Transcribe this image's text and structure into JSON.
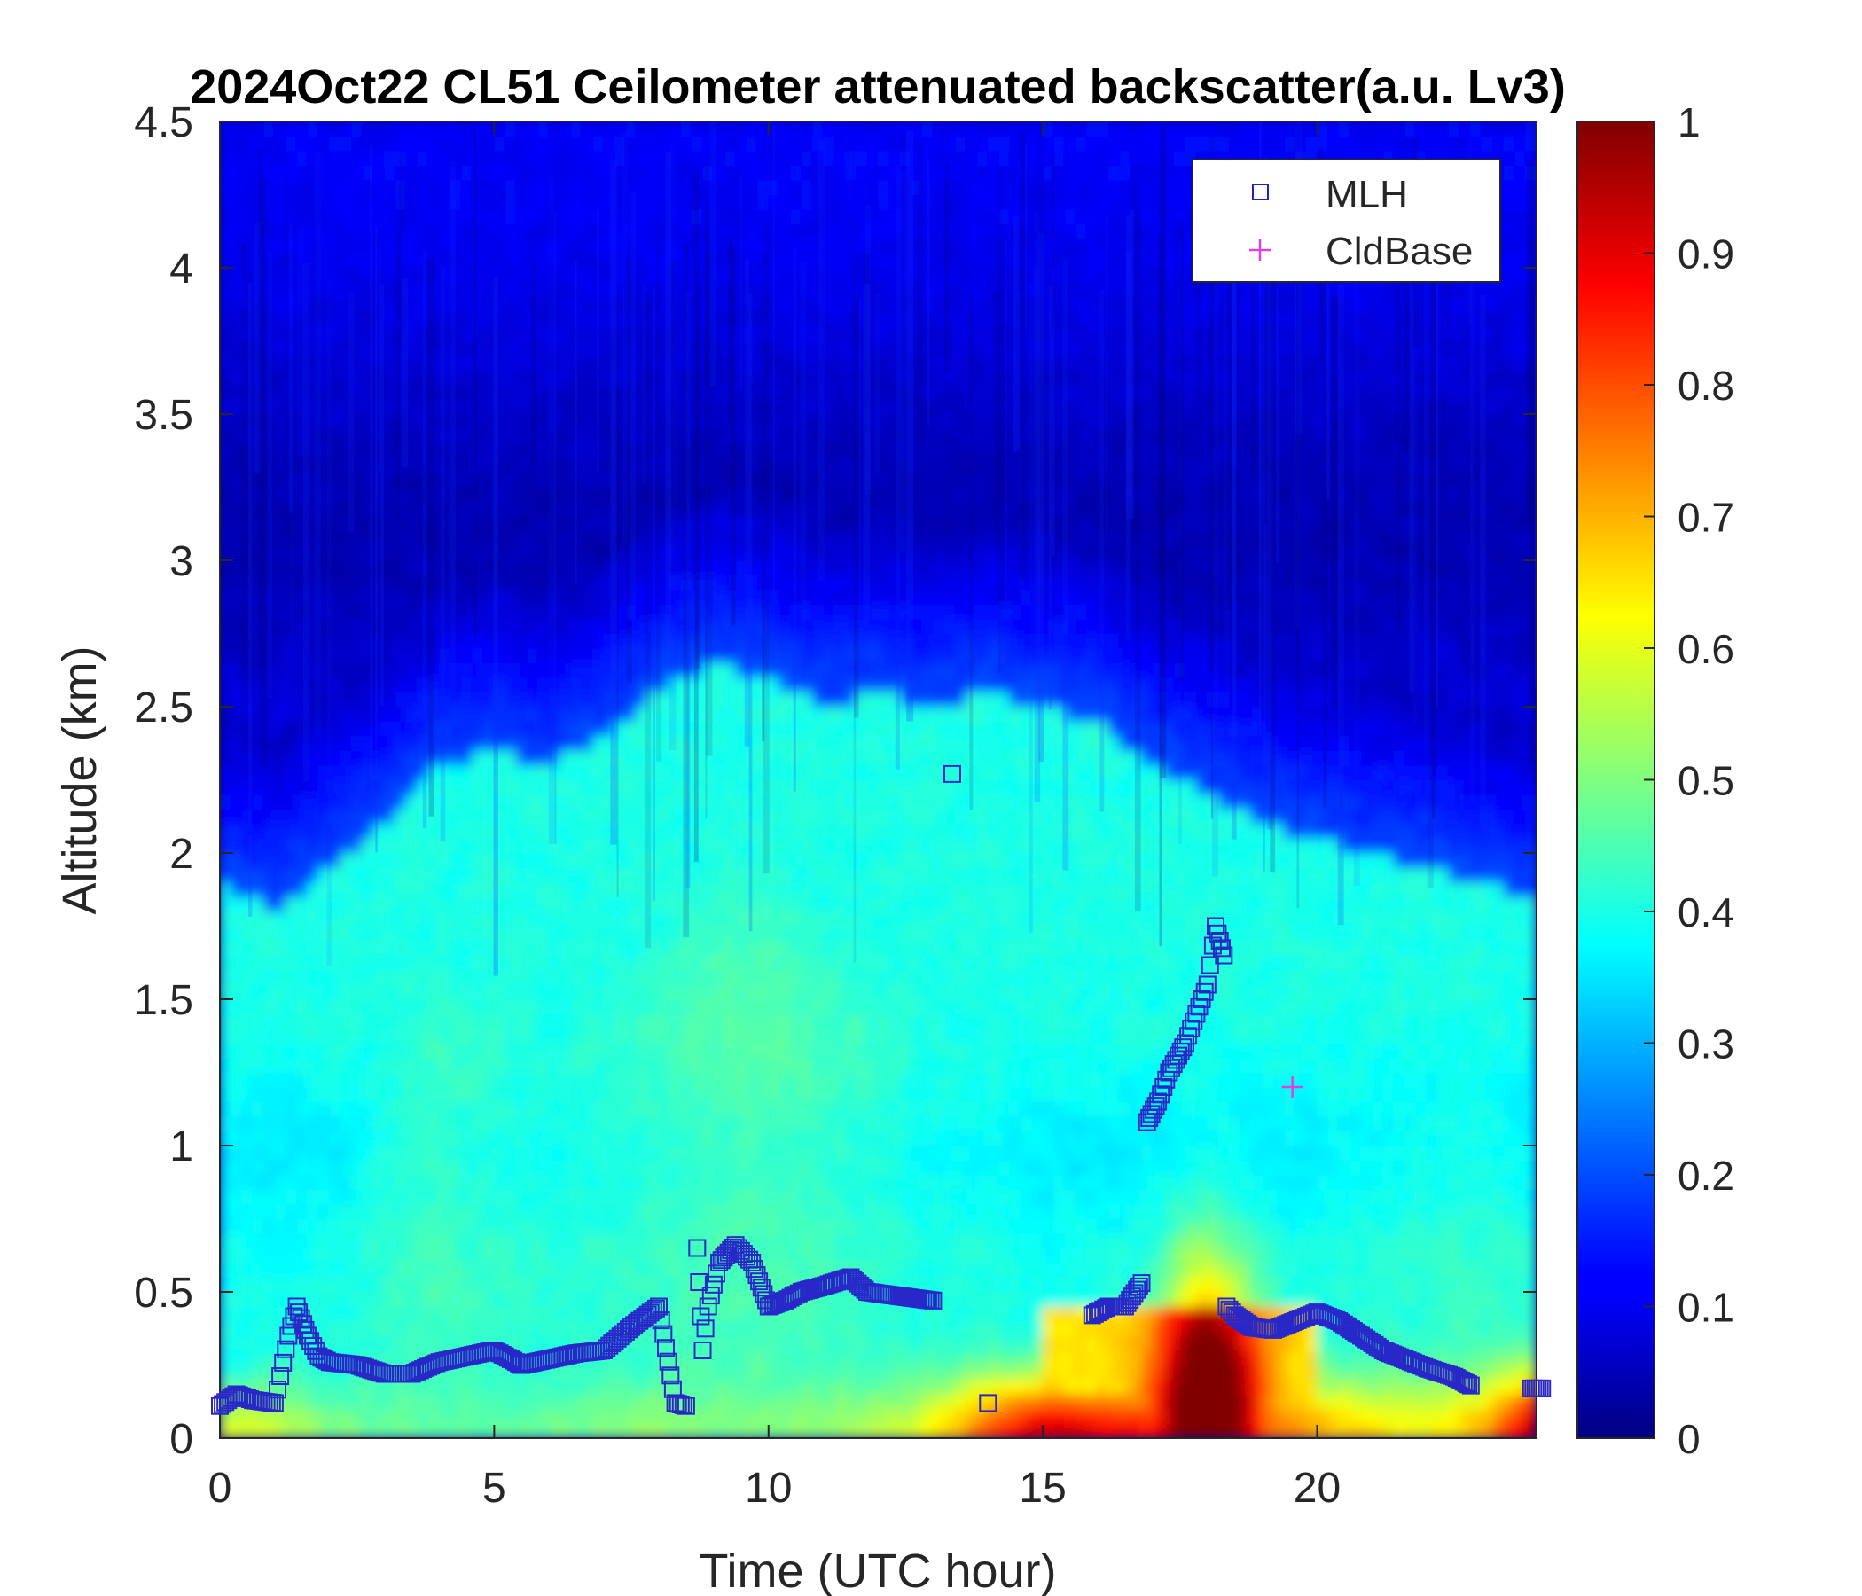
{
  "chart_data": {
    "type": "heatmap",
    "title": "2024Oct22 CL51 Ceilometer attenuated backscatter(a.u. Lv3)",
    "xlabel": "Time (UTC hour)",
    "ylabel": "Altitude (km)",
    "xlim": [
      0,
      24
    ],
    "ylim": [
      0,
      4.5
    ],
    "xticks": [
      "0",
      "5",
      "10",
      "15",
      "20"
    ],
    "yticks": [
      "0",
      "0.5",
      "1",
      "1.5",
      "2",
      "2.5",
      "3",
      "3.5",
      "4",
      "4.5"
    ],
    "colorbar": {
      "range": [
        0,
        1
      ],
      "ticks": [
        "0",
        "0.1",
        "0.2",
        "0.3",
        "0.4",
        "0.5",
        "0.6",
        "0.7",
        "0.8",
        "0.9",
        "1"
      ],
      "colormap": "jet"
    },
    "legend": {
      "placement": "top-right",
      "entries": [
        {
          "label": "MLH",
          "marker": "square",
          "color": "#2020c8"
        },
        {
          "label": "CldBase",
          "marker": "plus",
          "color": "#e040e0"
        }
      ]
    },
    "backscatter_profile": {
      "times": [
        0,
        1,
        2,
        3,
        4,
        5,
        6,
        7,
        8,
        9,
        10,
        11,
        12,
        13,
        14,
        15,
        16,
        17,
        18,
        19,
        20,
        21,
        22,
        23,
        24
      ],
      "aerosol_layer_top_km": [
        1.9,
        1.8,
        1.95,
        2.1,
        2.3,
        2.35,
        2.3,
        2.4,
        2.55,
        2.65,
        2.6,
        2.5,
        2.55,
        2.5,
        2.55,
        2.5,
        2.45,
        2.3,
        2.2,
        2.1,
        2.05,
        2.0,
        1.95,
        1.9,
        1.85
      ],
      "layer_peak_value": [
        0.36,
        0.38,
        0.4,
        0.44,
        0.46,
        0.44,
        0.43,
        0.44,
        0.45,
        0.47,
        0.48,
        0.46,
        0.44,
        0.42,
        0.42,
        0.4,
        0.38,
        0.38,
        0.38,
        0.39,
        0.41,
        0.42,
        0.43,
        0.44,
        0.42
      ],
      "surface_value": [
        0.6,
        0.58,
        0.5,
        0.48,
        0.47,
        0.47,
        0.48,
        0.5,
        0.52,
        0.5,
        0.5,
        0.52,
        0.55,
        0.62,
        0.8,
        0.93,
        0.9,
        0.88,
        0.95,
        0.8,
        0.72,
        0.65,
        0.62,
        0.7,
        0.98
      ]
    },
    "series": [
      {
        "name": "MLH",
        "x": [
          0,
          0.3,
          0.6,
          1.0,
          1.25,
          1.4,
          1.6,
          1.8,
          2.0,
          2.5,
          3.0,
          3.5,
          4.0,
          4.5,
          5.0,
          5.5,
          6.0,
          6.5,
          7.0,
          7.5,
          8.0,
          8.3,
          8.5,
          8.7,
          8.8,
          8.9,
          9.1,
          9.4,
          9.7,
          10.0,
          10.3,
          10.6,
          11.0,
          11.5,
          11.8,
          12.2,
          12.6,
          13.0,
          13.35,
          14.0,
          15.9,
          16.2,
          16.5,
          16.8,
          16.9,
          17.1,
          17.3,
          17.6,
          17.8,
          18.0,
          18.15,
          18.3,
          18.35,
          18.5,
          18.8,
          19.2,
          19.6,
          20.0,
          20.4,
          20.8,
          21.2,
          21.6,
          22.0,
          22.5,
          22.8,
          23.9,
          24.1
        ],
        "y": [
          0.11,
          0.15,
          0.13,
          0.12,
          0.35,
          0.45,
          0.35,
          0.28,
          0.26,
          0.25,
          0.22,
          0.22,
          0.26,
          0.28,
          0.3,
          0.25,
          0.27,
          0.29,
          0.3,
          0.38,
          0.45,
          0.12,
          0.11,
          0.65,
          0.3,
          0.45,
          0.6,
          0.66,
          0.6,
          0.45,
          0.47,
          0.5,
          0.52,
          0.55,
          0.5,
          0.49,
          0.48,
          0.47,
          2.27,
          0.12,
          0.42,
          0.45,
          0.45,
          0.53,
          1.08,
          1.15,
          1.25,
          1.35,
          1.45,
          1.55,
          1.75,
          1.65,
          0.45,
          0.42,
          0.38,
          0.37,
          0.4,
          0.43,
          0.4,
          0.35,
          0.3,
          0.27,
          0.24,
          0.21,
          0.18,
          0.17,
          0.17
        ]
      },
      {
        "name": "CldBase",
        "x": [
          19.55
        ],
        "y": [
          1.2
        ]
      }
    ]
  }
}
